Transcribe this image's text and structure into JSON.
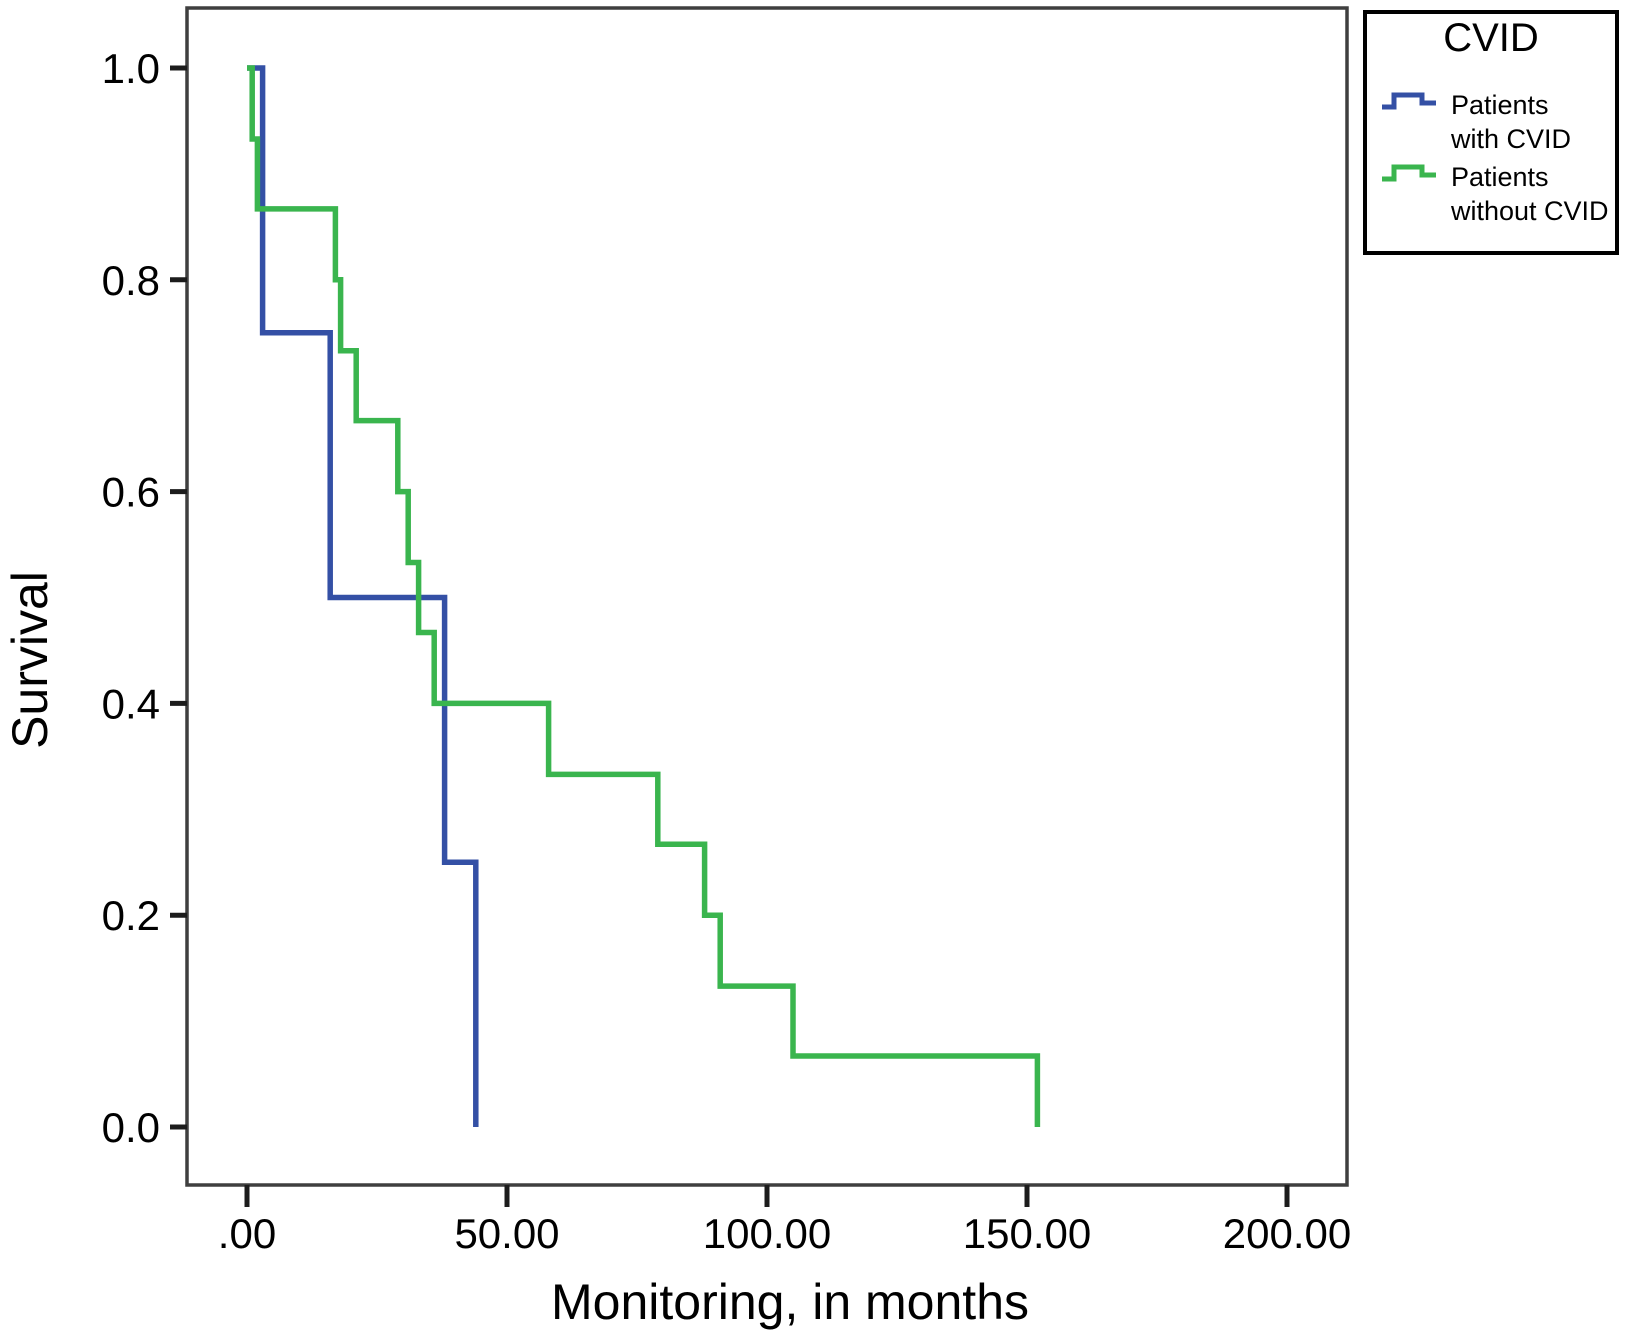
{
  "chart_data": {
    "type": "line",
    "subtype": "kaplan-meier-step",
    "title": "",
    "xlabel": "Monitoring, in months",
    "ylabel": "Survival",
    "xlim": [
      0,
      200
    ],
    "ylim": [
      0.0,
      1.0
    ],
    "grid": false,
    "x_ticks": {
      "values": [
        0,
        50,
        100,
        150,
        200
      ],
      "labels": [
        ".00",
        "50.00",
        "100.00",
        "150.00",
        "200.00"
      ]
    },
    "y_ticks": {
      "values": [
        0.0,
        0.2,
        0.4,
        0.6,
        0.8,
        1.0
      ],
      "labels": [
        "0.0",
        "0.2",
        "0.4",
        "0.6",
        "0.8",
        "1.0"
      ]
    },
    "legend": {
      "title": "CVID",
      "position": "top-right-outside",
      "entries": [
        {
          "label": "Patients with CVID",
          "label_lines": [
            "Patients",
            "with CVID"
          ],
          "color": "#3450a5"
        },
        {
          "label": "Patients without CVID",
          "label_lines": [
            "Patients",
            "without CVID"
          ],
          "color": "#3ab54e"
        }
      ]
    },
    "series": [
      {
        "name": "Patients with CVID",
        "color": "#3450a5",
        "steps": [
          [
            0,
            1.0
          ],
          [
            3,
            1.0
          ],
          [
            3,
            0.75
          ],
          [
            16,
            0.75
          ],
          [
            16,
            0.5
          ],
          [
            38,
            0.5
          ],
          [
            38,
            0.25
          ],
          [
            44,
            0.25
          ],
          [
            44,
            0.0
          ]
        ]
      },
      {
        "name": "Patients without CVID",
        "color": "#3ab54e",
        "steps": [
          [
            0,
            1.0
          ],
          [
            1,
            1.0
          ],
          [
            1,
            0.933
          ],
          [
            2,
            0.933
          ],
          [
            2,
            0.867
          ],
          [
            17,
            0.867
          ],
          [
            17,
            0.8
          ],
          [
            18,
            0.8
          ],
          [
            18,
            0.733
          ],
          [
            21,
            0.733
          ],
          [
            21,
            0.667
          ],
          [
            29,
            0.667
          ],
          [
            29,
            0.6
          ],
          [
            31,
            0.6
          ],
          [
            31,
            0.533
          ],
          [
            33,
            0.533
          ],
          [
            33,
            0.467
          ],
          [
            36,
            0.467
          ],
          [
            36,
            0.4
          ],
          [
            58,
            0.4
          ],
          [
            58,
            0.333
          ],
          [
            79,
            0.333
          ],
          [
            79,
            0.267
          ],
          [
            88,
            0.267
          ],
          [
            88,
            0.2
          ],
          [
            91,
            0.2
          ],
          [
            91,
            0.133
          ],
          [
            105,
            0.133
          ],
          [
            105,
            0.067
          ],
          [
            152,
            0.067
          ],
          [
            152,
            0.0
          ]
        ]
      }
    ],
    "frame_color": "#3f3f3f",
    "tick_color": "#1c1c1c"
  }
}
